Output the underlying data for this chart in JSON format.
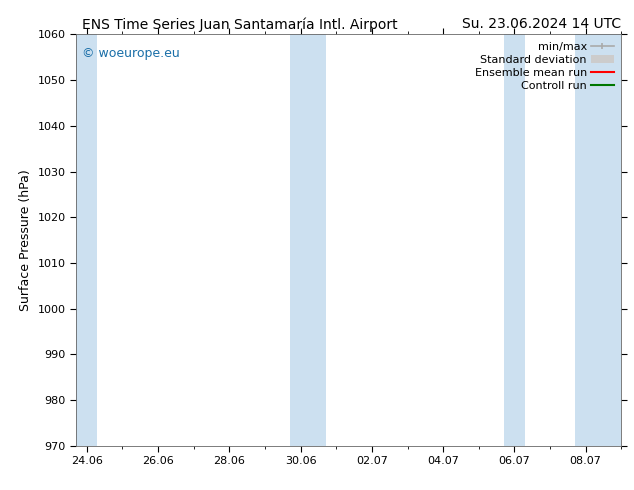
{
  "title_left": "ENS Time Series Juan Santamaría Intl. Airport",
  "title_right": "Su. 23.06.2024 14 UTC",
  "ylabel": "Surface Pressure (hPa)",
  "ylim": [
    970,
    1060
  ],
  "yticks": [
    970,
    980,
    990,
    1000,
    1010,
    1020,
    1030,
    1040,
    1050,
    1060
  ],
  "xtick_labels": [
    "24.06",
    "26.06",
    "28.06",
    "30.06",
    "02.07",
    "04.07",
    "06.07",
    "08.07"
  ],
  "xtick_positions": [
    0,
    2,
    4,
    6,
    8,
    10,
    12,
    14
  ],
  "xlim": [
    -0.3,
    15.0
  ],
  "shaded_regions": [
    {
      "start": -0.3,
      "end": 0.3
    },
    {
      "start": 5.7,
      "end": 6.7
    },
    {
      "start": 11.7,
      "end": 12.3
    },
    {
      "start": 13.7,
      "end": 15.0
    }
  ],
  "shaded_color": "#cce0f0",
  "background_color": "#ffffff",
  "watermark_text": "© woeurope.eu",
  "watermark_color": "#1a6fa8",
  "title_fontsize": 10,
  "axis_label_fontsize": 9,
  "tick_fontsize": 8,
  "watermark_fontsize": 9,
  "legend_fontsize": 8,
  "minmax_color": "#aaaaaa",
  "std_color": "#cccccc",
  "ens_color": "#ff0000",
  "ctrl_color": "#007700"
}
